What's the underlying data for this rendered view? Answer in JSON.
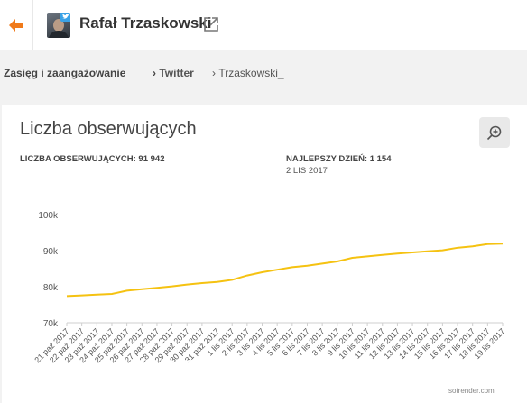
{
  "header": {
    "name": "Rafał Trzaskowski",
    "accent": "#f07a1a",
    "twitter_color": "#3aa2e6"
  },
  "breadcrumbs": {
    "section": "Zasięg i zaangażowanie",
    "network": "Twitter",
    "account": "Trzaskowski_"
  },
  "card": {
    "title": "Liczba obserwujących",
    "followers_label": "LICZBA OBSERWUJĄCYCH: 91 942",
    "best_day_label": "NAJLEPSZY DZIEŃ: 1 154",
    "best_day_date": "2 LIS 2017",
    "credit": "sotrender.com"
  },
  "chart_data": {
    "type": "line",
    "color": "#f5c211",
    "ylim": [
      70000,
      100000
    ],
    "yticks": [
      70000,
      80000,
      90000,
      100000
    ],
    "ytick_labels": [
      "70k",
      "80k",
      "90k",
      "100k"
    ],
    "categories": [
      "21 paź 2017",
      "22 paź 2017",
      "23 paź 2017",
      "24 paź 2017",
      "25 paź 2017",
      "26 paź 2017",
      "27 paź 2017",
      "28 paź 2017",
      "29 paź 2017",
      "30 paź 2017",
      "31 paź 2017",
      "1 lis 2017",
      "2 lis 2017",
      "3 lis 2017",
      "4 lis 2017",
      "5 lis 2017",
      "6 lis 2017",
      "7 lis 2017",
      "8 lis 2017",
      "9 lis 2017",
      "10 lis 2017",
      "11 lis 2017",
      "12 lis 2017",
      "13 lis 2017",
      "14 lis 2017",
      "15 lis 2017",
      "16 lis 2017",
      "17 lis 2017",
      "18 lis 2017",
      "19 lis 2017"
    ],
    "series": [
      {
        "values": [
          77400,
          77600,
          77800,
          78000,
          78900,
          79300,
          79700,
          80100,
          80600,
          81000,
          81300,
          81900,
          83100,
          84000,
          84700,
          85400,
          85800,
          86400,
          87000,
          88000,
          88400,
          88800,
          89200,
          89500,
          89800,
          90100,
          90800,
          91200,
          91800,
          91942
        ]
      }
    ]
  }
}
